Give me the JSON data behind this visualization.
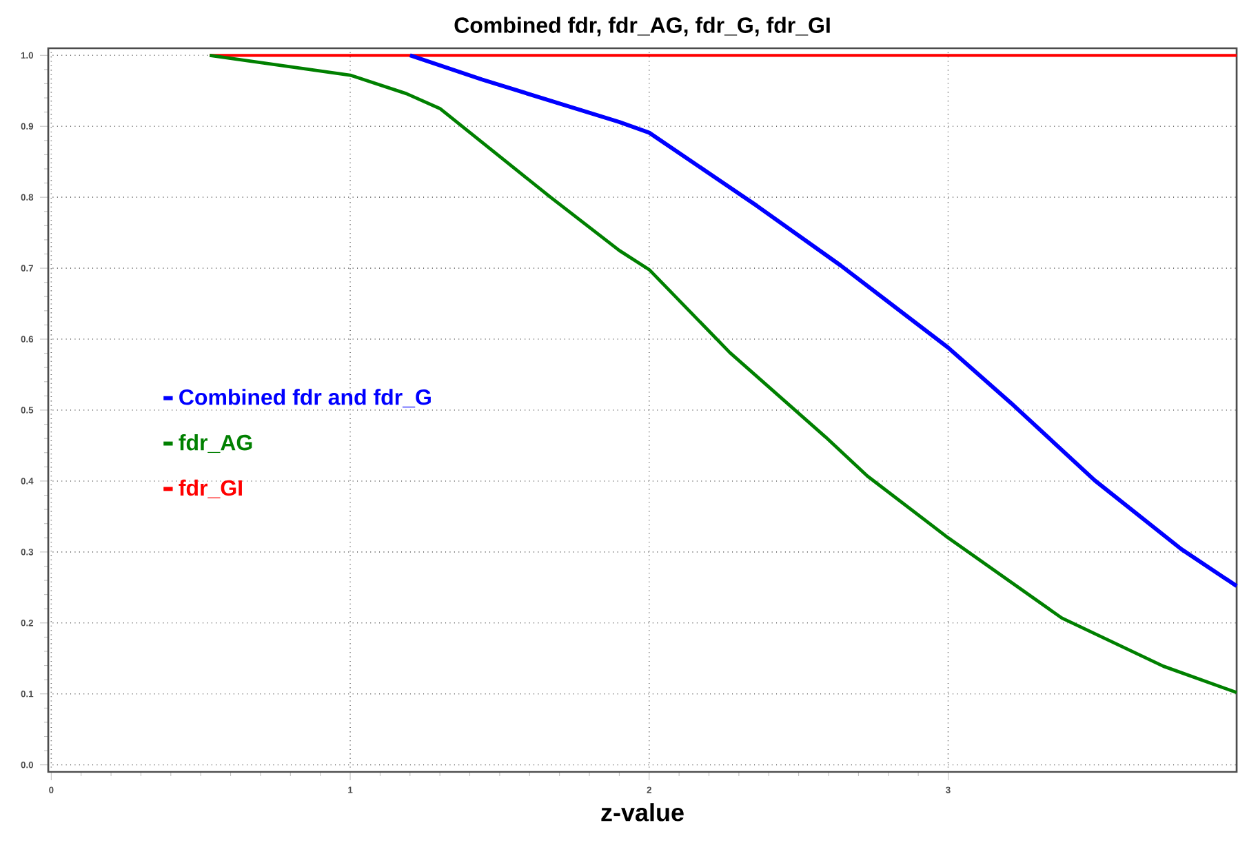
{
  "chart_data": {
    "type": "line",
    "title": "Combined fdr, fdr_AG, fdr_G, fdr_GI",
    "xlabel": "z-value",
    "xlim": [
      -0.01,
      3.965
    ],
    "ylim": [
      -0.01,
      1.01
    ],
    "xticks": [
      0,
      1,
      2,
      3
    ],
    "yticks": [
      {
        "value": 0,
        "label": "0.0"
      },
      0.1,
      0.2,
      0.3,
      0.4,
      0.5,
      0.6,
      0.7,
      0.8,
      0.9,
      {
        "value": 1,
        "label": "1.0"
      }
    ],
    "grid": true,
    "legend": "left",
    "series": [
      {
        "name": "Combined fdr and fdr_G",
        "color": "#0000ff",
        "x": [
          1.2,
          1.44,
          1.9,
          2.0,
          2.36,
          2.64,
          3.0,
          3.21,
          3.49,
          3.78,
          3.965
        ],
        "values": [
          1.0,
          0.966,
          0.906,
          0.891,
          0.788,
          0.704,
          0.588,
          0.51,
          0.401,
          0.304,
          0.252
        ]
      },
      {
        "name": "fdr_AG",
        "color": "#008000",
        "x": [
          0.53,
          1.0,
          1.188,
          1.3,
          1.67,
          1.9,
          2.0,
          2.27,
          2.59,
          2.73,
          3.0,
          3.38,
          3.72,
          3.965
        ],
        "values": [
          1.0,
          0.972,
          0.946,
          0.925,
          0.8,
          0.725,
          0.698,
          0.581,
          0.462,
          0.407,
          0.32,
          0.207,
          0.139,
          0.102
        ]
      },
      {
        "name": "fdr_GI",
        "color": "#ff0000",
        "x": [
          0.53,
          3.965
        ],
        "values": [
          1.0,
          1.0
        ]
      }
    ]
  }
}
